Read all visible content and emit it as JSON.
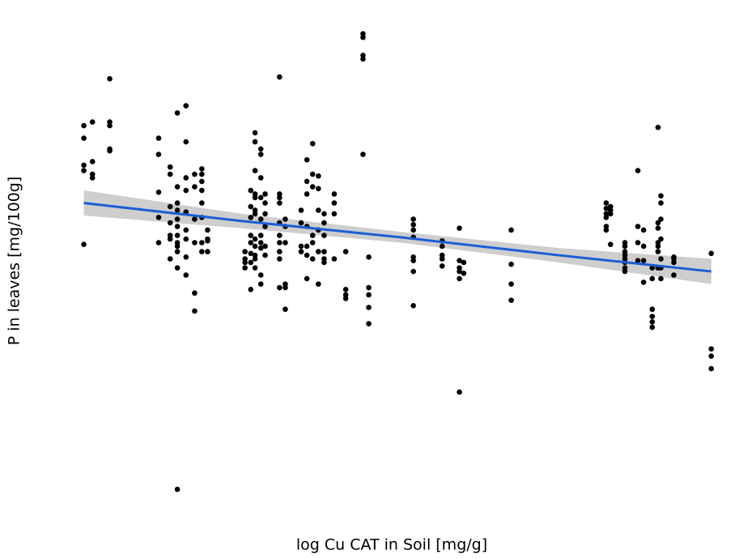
{
  "chart_data": {
    "type": "scatter",
    "x_label": "log Cu CAT in Soil [mg/g]",
    "y_label": "P in leaves [mg/100g]",
    "xlim": [
      1.9,
      6.58
    ],
    "ylim": [
      0.032,
      2.79
    ],
    "xticks": [
      2,
      3,
      4,
      5,
      6
    ],
    "yticks": [
      1,
      2
    ],
    "xminor": [
      2.5,
      3.5,
      4.5,
      5.5,
      6.5
    ],
    "yminor": [
      0.5,
      1.5,
      2.5
    ],
    "grid": true,
    "color": "#000000",
    "x": [
      2.1,
      2.1,
      2.1,
      2.1,
      2.1,
      2.16,
      2.16,
      2.16,
      2.16,
      2.28,
      2.28,
      2.28,
      2.28,
      2.28,
      2.62,
      2.62,
      2.62,
      2.62,
      2.62,
      2.7,
      2.7,
      2.7,
      2.7,
      2.7,
      2.7,
      2.7,
      2.75,
      2.75,
      2.75,
      2.75,
      2.75,
      2.75,
      2.75,
      2.75,
      2.75,
      2.75,
      2.75,
      2.75,
      2.81,
      2.81,
      2.81,
      2.81,
      2.81,
      2.81,
      2.81,
      2.81,
      2.81,
      2.87,
      2.87,
      2.87,
      2.87,
      2.87,
      2.87,
      2.92,
      2.92,
      2.92,
      2.92,
      2.92,
      2.92,
      2.92,
      2.92,
      2.96,
      2.96,
      2.96,
      2.96,
      3.22,
      3.22,
      3.22,
      3.22,
      3.26,
      3.26,
      3.26,
      3.26,
      3.26,
      3.26,
      3.26,
      3.26,
      3.29,
      3.29,
      3.29,
      3.29,
      3.29,
      3.29,
      3.29,
      3.29,
      3.29,
      3.29,
      3.29,
      3.29,
      3.33,
      3.33,
      3.33,
      3.33,
      3.33,
      3.33,
      3.33,
      3.33,
      3.33,
      3.33,
      3.36,
      3.36,
      3.36,
      3.36,
      3.36,
      3.36,
      3.46,
      3.46,
      3.46,
      3.46,
      3.46,
      3.46,
      3.46,
      3.46,
      3.46,
      3.46,
      3.5,
      3.5,
      3.5,
      3.5,
      3.5,
      3.5,
      3.61,
      3.61,
      3.61,
      3.61,
      3.65,
      3.65,
      3.65,
      3.65,
      3.65,
      3.65,
      3.65,
      3.69,
      3.69,
      3.69,
      3.69,
      3.69,
      3.69,
      3.73,
      3.73,
      3.73,
      3.73,
      3.73,
      3.73,
      3.77,
      3.77,
      3.77,
      3.77,
      3.77,
      3.77,
      3.84,
      3.84,
      3.84,
      3.84,
      3.92,
      3.92,
      3.92,
      3.92,
      4.04,
      4.04,
      4.04,
      4.04,
      4.04,
      4.08,
      4.08,
      4.08,
      4.08,
      4.08,
      4.39,
      4.39,
      4.39,
      4.39,
      4.39,
      4.39,
      4.39,
      4.39,
      4.59,
      4.59,
      4.59,
      4.59,
      4.59,
      4.71,
      4.71,
      4.71,
      4.71,
      4.71,
      4.71,
      4.74,
      4.74,
      5.07,
      5.07,
      5.07,
      5.07,
      5.73,
      5.73,
      5.73,
      5.73,
      5.73,
      5.73,
      5.76,
      5.76,
      5.76,
      5.76,
      5.86,
      5.86,
      5.86,
      5.86,
      5.86,
      5.86,
      5.86,
      5.86,
      5.95,
      5.95,
      5.95,
      5.95,
      5.99,
      5.99,
      5.99,
      5.99,
      6.05,
      6.05,
      6.05,
      6.05,
      6.05,
      6.05,
      6.09,
      6.09,
      6.09,
      6.09,
      6.09,
      6.09,
      6.09,
      6.11,
      6.11,
      6.11,
      6.11,
      6.11,
      6.11,
      6.11,
      6.2,
      6.2,
      6.2,
      6.2,
      6.46,
      6.46,
      6.46,
      6.46
    ],
    "values": [
      2.16,
      2.09,
      1.94,
      1.91,
      1.5,
      2.18,
      1.96,
      1.89,
      1.87,
      2.42,
      2.18,
      2.16,
      2.03,
      2.02,
      2.09,
      2.0,
      1.79,
      1.65,
      1.51,
      1.93,
      1.89,
      1.71,
      1.62,
      1.55,
      1.53,
      1.42,
      2.23,
      1.82,
      1.73,
      1.69,
      1.64,
      1.6,
      1.55,
      1.51,
      1.49,
      1.46,
      1.37,
      0.14,
      2.27,
      2.07,
      1.87,
      1.8,
      1.68,
      1.58,
      1.53,
      1.43,
      1.33,
      1.89,
      1.82,
      1.64,
      1.51,
      1.23,
      1.13,
      1.92,
      1.89,
      1.85,
      1.8,
      1.73,
      1.65,
      1.51,
      1.46,
      1.58,
      1.53,
      1.52,
      1.46,
      1.46,
      1.42,
      1.4,
      1.37,
      1.8,
      1.71,
      1.65,
      1.55,
      1.51,
      1.45,
      1.4,
      1.25,
      2.12,
      2.07,
      1.91,
      1.78,
      1.76,
      1.69,
      1.67,
      1.53,
      1.49,
      1.44,
      1.42,
      1.37,
      2.03,
      2.0,
      1.87,
      1.76,
      1.64,
      1.55,
      1.51,
      1.48,
      1.33,
      1.28,
      1.78,
      1.73,
      1.67,
      1.6,
      1.49,
      1.44,
      2.43,
      1.78,
      1.76,
      1.73,
      1.62,
      1.55,
      1.51,
      1.46,
      1.42,
      1.26,
      1.64,
      1.6,
      1.51,
      1.28,
      1.26,
      1.14,
      1.69,
      1.62,
      1.49,
      1.46,
      1.97,
      1.85,
      1.78,
      1.6,
      1.49,
      1.44,
      1.31,
      2.06,
      1.89,
      1.82,
      1.55,
      1.51,
      1.42,
      1.88,
      1.81,
      1.69,
      1.58,
      1.46,
      1.28,
      1.67,
      1.62,
      1.55,
      1.46,
      1.42,
      1.4,
      1.78,
      1.73,
      1.67,
      1.42,
      1.46,
      1.25,
      1.22,
      1.2,
      2.67,
      2.65,
      2.55,
      2.53,
      2.0,
      1.43,
      1.26,
      1.22,
      1.15,
      1.06,
      1.64,
      1.61,
      1.58,
      1.54,
      1.43,
      1.41,
      1.35,
      1.16,
      1.52,
      1.49,
      1.44,
      1.42,
      1.38,
      1.59,
      1.41,
      1.37,
      1.35,
      1.31,
      0.68,
      1.4,
      1.34,
      1.58,
      1.39,
      1.28,
      1.19,
      1.73,
      1.7,
      1.67,
      1.65,
      1.6,
      1.58,
      1.71,
      1.69,
      1.67,
      1.5,
      1.51,
      1.49,
      1.46,
      1.44,
      1.42,
      1.4,
      1.37,
      1.35,
      1.91,
      1.6,
      1.51,
      1.41,
      1.58,
      1.49,
      1.41,
      1.29,
      1.37,
      1.31,
      1.14,
      1.1,
      1.07,
      1.04,
      2.15,
      1.62,
      1.59,
      1.51,
      1.49,
      1.46,
      1.37,
      1.77,
      1.73,
      1.64,
      1.53,
      1.42,
      1.37,
      1.31,
      1.43,
      1.42,
      1.4,
      1.33,
      1.45,
      0.92,
      0.88,
      0.81
    ],
    "fit": {
      "color": "#1a5ed6",
      "band_color": "#bdbdbd",
      "x": [
        2.1,
        3.2,
        4.3,
        5.4,
        6.46
      ],
      "values": [
        1.73,
        1.63,
        1.54,
        1.44,
        1.35
      ],
      "lower": [
        1.66,
        1.59,
        1.51,
        1.4,
        1.28
      ],
      "upper": [
        1.8,
        1.67,
        1.57,
        1.48,
        1.42
      ]
    }
  }
}
